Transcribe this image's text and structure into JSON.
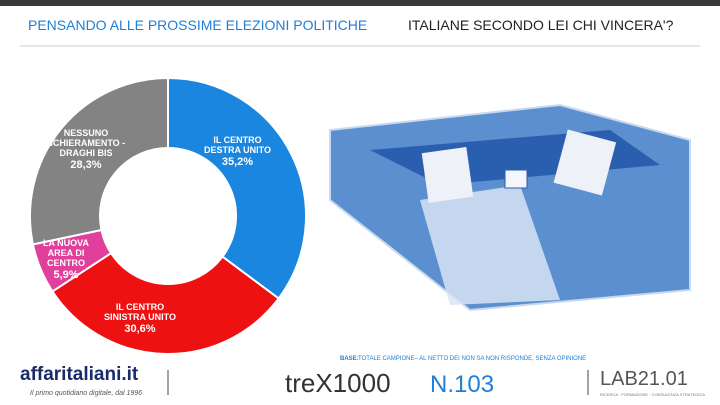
{
  "chart_data": {
    "type": "pie",
    "title": [
      "PENSANDO ALLE PROSSIME ELEZIONI POLITICHE",
      "ITALIANE SECONDO LEI CHI VINCERA'?"
    ],
    "categories": [
      "IL CENTRO DESTRA UNITO",
      "IL CENTRO SINISTRA UNITO",
      "LA NUOVA AREA DI CENTRO",
      "NESSUNO SCHIERAMENTO - DRAGHI BIS"
    ],
    "values": [
      35.2,
      30.6,
      5.9,
      28.3
    ],
    "value_labels": [
      "35,2%",
      "30,6%",
      "5,9%",
      "28,3%"
    ],
    "colors": [
      "#1a86e0",
      "#ee1111",
      "#e0409c",
      "#838383"
    ],
    "donut": true
  },
  "footer": {
    "brand": "affaritaliani.it",
    "tagline": "Il primo quotidiano digitale, dal 1996",
    "base_label": "BASE:",
    "base_text": "TOTALE CAMPIONE– AL NETTO DEI NON SA NON RISPONDE, SENZA OPINIONE",
    "logo": "treX1000",
    "issue": "N.103",
    "lab": "LAB21.01",
    "lab_tagline": "RICERCA · FORMAZIONE · CONSULENZA STRATEGICA"
  }
}
